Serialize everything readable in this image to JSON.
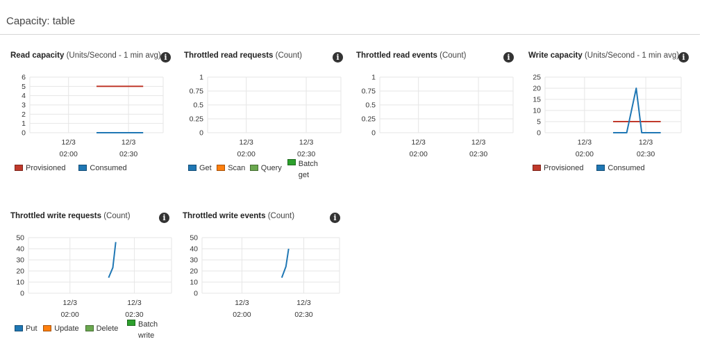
{
  "page": {
    "title": "Capacity: table"
  },
  "chart_data": [
    {
      "key": "read_capacity",
      "type": "line",
      "title": "Read capacity",
      "subtitle": "(Units/Second - 1 min avg)",
      "x_ticks": [
        [
          "12/3",
          "02:00"
        ],
        [
          "12/3",
          "02:30"
        ]
      ],
      "y_ticks": [
        "0",
        "1",
        "2",
        "3",
        "4",
        "5",
        "6"
      ],
      "ylim": [
        0,
        6
      ],
      "grid": true,
      "legend": "bottom",
      "series": [
        {
          "name": "Provisioned",
          "color": "#c0392b",
          "points": [
            [
              0.5,
              5
            ],
            [
              0.85,
              5
            ]
          ]
        },
        {
          "name": "Consumed",
          "color": "#1f77b4",
          "points": [
            [
              0.5,
              0
            ],
            [
              0.85,
              0
            ]
          ]
        }
      ]
    },
    {
      "key": "throttled_read_requests",
      "type": "line",
      "title": "Throttled read requests",
      "subtitle": "(Count)",
      "x_ticks": [
        [
          "12/3",
          "02:00"
        ],
        [
          "12/3",
          "02:30"
        ]
      ],
      "y_ticks": [
        "0",
        "0.25",
        "0.5",
        "0.75",
        "1"
      ],
      "ylim": [
        0,
        1
      ],
      "grid": true,
      "legend": "bottom",
      "series": [
        {
          "name": "Get",
          "color": "#1f77b4",
          "points": []
        },
        {
          "name": "Scan",
          "color": "#ff7f0e",
          "points": []
        },
        {
          "name": "Query",
          "color": "#6aa84f",
          "points": []
        },
        {
          "name": "Batch get",
          "color": "#2ca02c",
          "points": []
        }
      ]
    },
    {
      "key": "throttled_read_events",
      "type": "line",
      "title": "Throttled read events",
      "subtitle": "(Count)",
      "x_ticks": [
        [
          "12/3",
          "02:00"
        ],
        [
          "12/3",
          "02:30"
        ]
      ],
      "y_ticks": [
        "0",
        "0.25",
        "0.5",
        "0.75",
        "1"
      ],
      "ylim": [
        0,
        1
      ],
      "grid": true,
      "legend": "none",
      "series": []
    },
    {
      "key": "write_capacity",
      "type": "line",
      "title": "Write capacity",
      "subtitle": "(Units/Second - 1 min avg)",
      "x_ticks": [
        [
          "12/3",
          "02:00"
        ],
        [
          "12/3",
          "02:30"
        ]
      ],
      "y_ticks": [
        "0",
        "5",
        "10",
        "15",
        "20",
        "25"
      ],
      "ylim": [
        0,
        25
      ],
      "grid": true,
      "legend": "bottom",
      "series": [
        {
          "name": "Provisioned",
          "color": "#c0392b",
          "points": [
            [
              0.5,
              5
            ],
            [
              0.85,
              5
            ]
          ]
        },
        {
          "name": "Consumed",
          "color": "#1f77b4",
          "points": [
            [
              0.5,
              0
            ],
            [
              0.6,
              0
            ],
            [
              0.67,
              20
            ],
            [
              0.71,
              0
            ],
            [
              0.85,
              0
            ]
          ]
        }
      ]
    },
    {
      "key": "throttled_write_requests",
      "type": "line",
      "title": "Throttled write requests",
      "subtitle": "(Count)",
      "x_ticks": [
        [
          "12/3",
          "02:00"
        ],
        [
          "12/3",
          "02:30"
        ]
      ],
      "y_ticks": [
        "0",
        "10",
        "20",
        "30",
        "40",
        "50"
      ],
      "ylim": [
        0,
        50
      ],
      "grid": true,
      "legend": "bottom",
      "series": [
        {
          "name": "Put",
          "color": "#1f77b4",
          "points": [
            [
              0.56,
              14
            ],
            [
              0.59,
              23
            ],
            [
              0.61,
              46
            ]
          ]
        },
        {
          "name": "Update",
          "color": "#ff7f0e",
          "points": []
        },
        {
          "name": "Delete",
          "color": "#6aa84f",
          "points": []
        },
        {
          "name": "Batch write",
          "color": "#2ca02c",
          "points": []
        }
      ]
    },
    {
      "key": "throttled_write_events",
      "type": "line",
      "title": "Throttled write events",
      "subtitle": "(Count)",
      "x_ticks": [
        [
          "12/3",
          "02:00"
        ],
        [
          "12/3",
          "02:30"
        ]
      ],
      "y_ticks": [
        "0",
        "10",
        "20",
        "30",
        "40",
        "50"
      ],
      "ylim": [
        0,
        50
      ],
      "grid": true,
      "legend": "none",
      "series": [
        {
          "name": "",
          "color": "#1f77b4",
          "points": [
            [
              0.58,
              14
            ],
            [
              0.61,
              24
            ],
            [
              0.63,
              40
            ]
          ]
        }
      ]
    }
  ]
}
